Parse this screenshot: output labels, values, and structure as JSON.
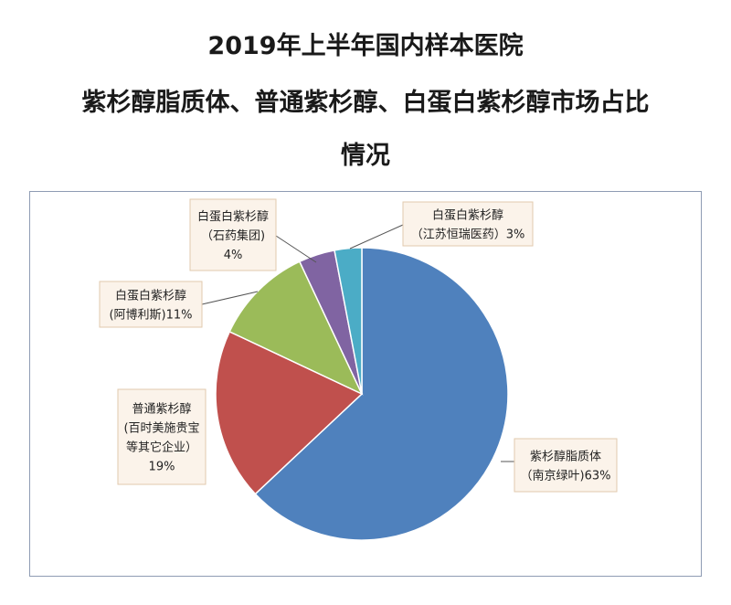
{
  "title": {
    "line1": "2019年上半年国内样本医院",
    "line2": "紫杉醇脂质体、普通紫杉醇、白蛋白紫杉醇市场占比",
    "line3": "情况"
  },
  "chart_data": {
    "type": "pie",
    "start_angle_deg": 0,
    "direction": "clockwise",
    "slices": [
      {
        "label_lines": [
          "紫杉醇脂质体",
          "（南京绿叶)63%"
        ],
        "value": 63,
        "color": "#4f81bd"
      },
      {
        "label_lines": [
          "普通紫杉醇",
          "(百时美施贵宝",
          "等其它企业）",
          "19%"
        ],
        "value": 19,
        "color": "#c0504d"
      },
      {
        "label_lines": [
          "白蛋白紫杉醇",
          "(阿博利斯)11%"
        ],
        "value": 11,
        "color": "#9bbb59"
      },
      {
        "label_lines": [
          "白蛋白紫杉醇",
          "（石药集团)",
          "4%"
        ],
        "value": 4,
        "color": "#8064a2"
      },
      {
        "label_lines": [
          "白蛋白紫杉醇",
          "（江苏恒瑞医药）3%"
        ],
        "value": 3,
        "color": "#4bacc6"
      }
    ]
  }
}
